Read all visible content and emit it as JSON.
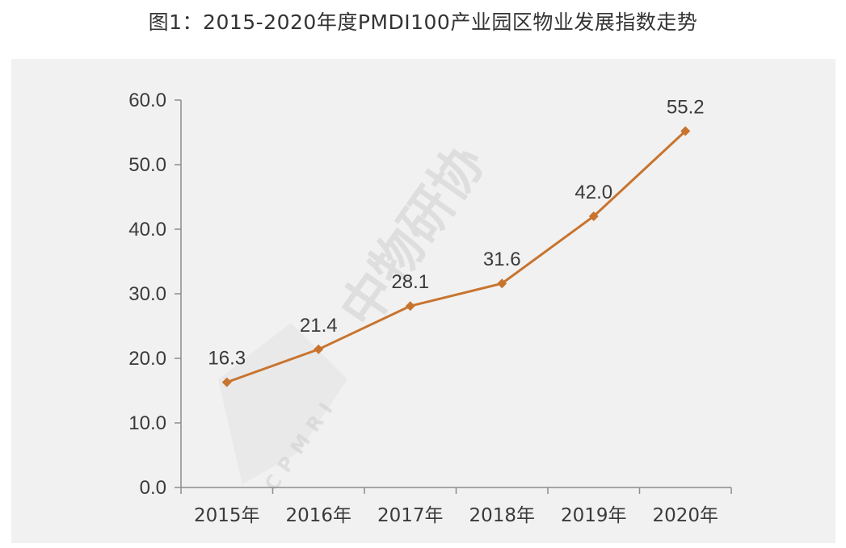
{
  "title": "图1：2015-2020年度PMDI100产业园区物业发展指数走势",
  "watermark_text": "中物研协",
  "watermark_sub": "CPMRI",
  "colors": {
    "line": "#c8742e",
    "axis": "#8c8c8c",
    "panel": "#f1f1f1"
  },
  "chart_data": {
    "type": "line",
    "categories": [
      "2015年",
      "2016年",
      "2017年",
      "2018年",
      "2019年",
      "2020年"
    ],
    "values": [
      16.3,
      21.4,
      28.1,
      31.6,
      42.0,
      55.2
    ],
    "value_labels": [
      "16.3",
      "21.4",
      "28.1",
      "31.6",
      "42.0",
      "55.2"
    ],
    "yticks": [
      "0.0",
      "10.0",
      "20.0",
      "30.0",
      "40.0",
      "50.0",
      "60.0"
    ],
    "ylim": [
      0,
      60
    ],
    "grid": false,
    "marker": "diamond",
    "title": "",
    "xlabel": "",
    "ylabel": ""
  }
}
